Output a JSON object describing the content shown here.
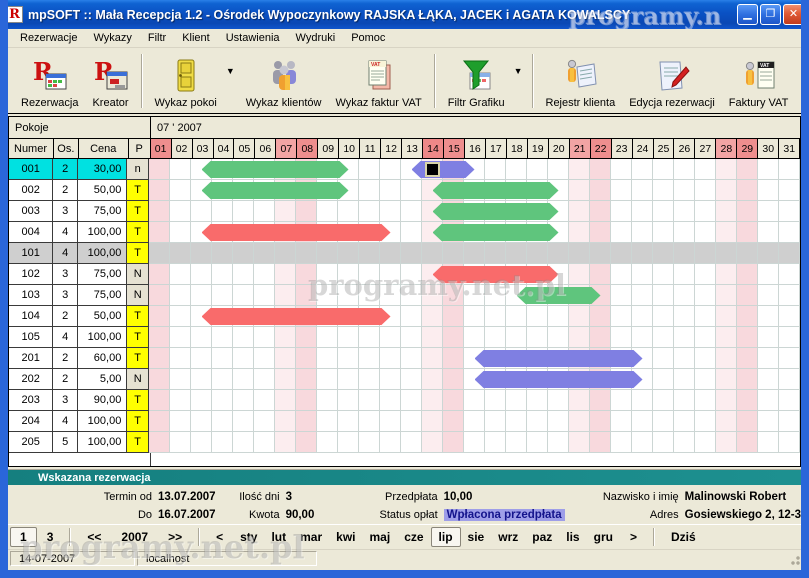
{
  "watermark": {
    "text": "programy.net.pl",
    "text_clipped": "programy.n"
  },
  "window": {
    "title": "mpSOFT :: Mała Recepcja 1.2  -  Ośrodek Wypoczynkowy RAJSKA ŁĄKA, JACEK i AGATA KOWALSCY",
    "icon_letter": "R",
    "buttons": {
      "minimize": "▁",
      "maximize": "❐",
      "close": "✕"
    }
  },
  "menu": {
    "items": [
      "Rezerwacje",
      "Wykazy",
      "Filtr",
      "Klient",
      "Ustawienia",
      "Wydruki",
      "Pomoc"
    ]
  },
  "toolbar": {
    "buttons": [
      {
        "label": "Rezerwacja",
        "icon": "reservation-icon",
        "dropdown": false,
        "group_end": false
      },
      {
        "label": "Kreator",
        "icon": "wizard-icon",
        "dropdown": false,
        "group_end": true
      },
      {
        "label": "Wykaz pokoi",
        "icon": "door-icon",
        "dropdown": true,
        "group_end": false
      },
      {
        "label": "Wykaz klientów",
        "icon": "clients-icon",
        "dropdown": false,
        "group_end": false
      },
      {
        "label": "Wykaz faktur VAT",
        "icon": "vat-list-icon",
        "dropdown": false,
        "group_end": true
      },
      {
        "label": "Filtr Grafiku",
        "icon": "filter-icon",
        "dropdown": true,
        "group_end": true
      },
      {
        "label": "Rejestr klienta",
        "icon": "client-register-icon",
        "dropdown": false,
        "group_end": false
      },
      {
        "label": "Edycja rezerwacji",
        "icon": "edit-reservation-icon",
        "dropdown": false,
        "group_end": false
      },
      {
        "label": "Faktury VAT",
        "icon": "invoice-vat-icon",
        "dropdown": false,
        "group_end": false
      }
    ]
  },
  "grid": {
    "pokoje_label": "Pokoje",
    "month_label": "07 ' 2007",
    "columns": {
      "numer": "Numer",
      "os": "Os.",
      "cena": "Cena",
      "p": "P"
    },
    "day_labels": [
      "01",
      "02",
      "03",
      "04",
      "05",
      "06",
      "07",
      "08",
      "09",
      "10",
      "11",
      "12",
      "13",
      "14",
      "15",
      "16",
      "17",
      "18",
      "19",
      "20",
      "21",
      "22",
      "23",
      "24",
      "25",
      "26",
      "27",
      "28",
      "29",
      "30",
      "31"
    ],
    "saturdays": [
      7,
      14,
      21,
      28
    ],
    "sundays": [
      1,
      8,
      15,
      22,
      29
    ],
    "today": 14,
    "rooms": [
      {
        "number": "001",
        "os": "2",
        "cena": "30,00",
        "p": "n",
        "state": "selected"
      },
      {
        "number": "002",
        "os": "2",
        "cena": "50,00",
        "p": "T",
        "state": ""
      },
      {
        "number": "003",
        "os": "3",
        "cena": "75,00",
        "p": "T",
        "state": ""
      },
      {
        "number": "004",
        "os": "4",
        "cena": "100,00",
        "p": "T",
        "state": ""
      },
      {
        "number": "101",
        "os": "4",
        "cena": "100,00",
        "p": "T",
        "state": "highlighted"
      },
      {
        "number": "102",
        "os": "3",
        "cena": "75,00",
        "p": "N",
        "state": ""
      },
      {
        "number": "103",
        "os": "3",
        "cena": "75,00",
        "p": "N",
        "state": ""
      },
      {
        "number": "104",
        "os": "2",
        "cena": "50,00",
        "p": "T",
        "state": ""
      },
      {
        "number": "105",
        "os": "4",
        "cena": "100,00",
        "p": "T",
        "state": ""
      },
      {
        "number": "201",
        "os": "2",
        "cena": "60,00",
        "p": "T",
        "state": ""
      },
      {
        "number": "202",
        "os": "2",
        "cena": "5,00",
        "p": "N",
        "state": ""
      },
      {
        "number": "203",
        "os": "3",
        "cena": "90,00",
        "p": "T",
        "state": ""
      },
      {
        "number": "204",
        "os": "4",
        "cena": "100,00",
        "p": "T",
        "state": ""
      },
      {
        "number": "205",
        "os": "5",
        "cena": "100,00",
        "p": "T",
        "state": ""
      }
    ],
    "reservations": [
      {
        "room": "001",
        "from_day": 3,
        "to_day": 10,
        "color": "green"
      },
      {
        "room": "001",
        "from_day": 13,
        "to_day": 16,
        "color": "blue",
        "marker_day": 14
      },
      {
        "room": "002",
        "from_day": 3,
        "to_day": 10,
        "color": "green"
      },
      {
        "room": "002",
        "from_day": 14,
        "to_day": 20,
        "color": "green"
      },
      {
        "room": "003",
        "from_day": 14,
        "to_day": 20,
        "color": "green"
      },
      {
        "room": "004",
        "from_day": 3,
        "to_day": 12,
        "color": "red"
      },
      {
        "room": "004",
        "from_day": 14,
        "to_day": 20,
        "color": "green"
      },
      {
        "room": "102",
        "from_day": 14,
        "to_day": 20,
        "color": "red"
      },
      {
        "room": "103",
        "from_day": 18,
        "to_day": 22,
        "color": "green"
      },
      {
        "room": "104",
        "from_day": 3,
        "to_day": 12,
        "color": "red"
      },
      {
        "room": "201",
        "from_day": 16,
        "to_day": 24,
        "color": "blue"
      },
      {
        "room": "202",
        "from_day": 16,
        "to_day": 24,
        "color": "blue"
      }
    ],
    "bar_colors": {
      "green": "#5fc57d",
      "red": "#f96b6b",
      "blue": "#7f7fe2"
    }
  },
  "info_panel": {
    "title": "Wskazana rezerwacja",
    "termin_od_label": "Termin od",
    "termin_od": "13.07.2007",
    "do_label": "Do",
    "do_value": "16.07.2007",
    "ilosc_dni_label": "Ilość dni",
    "ilosc_dni": "3",
    "kwota_label": "Kwota",
    "kwota": "90,00",
    "przedplata_label": "Przedpłata",
    "przedplata": "10,00",
    "status_label": "Status opłat",
    "status": "Wpłacona przedpłata",
    "nazwisko_label": "Nazwisko i imię",
    "nazwisko": "Malinowski Robert",
    "adres_label": "Adres",
    "adres": "Gosiewskiego 2, 12-3"
  },
  "bottom_nav": {
    "page_current": "1",
    "page_count": "3",
    "prev_year": "<<",
    "year": "2007",
    "next_year": ">>",
    "prev_month": "<",
    "next_month": ">",
    "months": [
      "sty",
      "lut",
      "mar",
      "kwi",
      "maj",
      "cze",
      "lip",
      "sie",
      "wrz",
      "paz",
      "lis",
      "gru"
    ],
    "selected_month": "lip",
    "today_label": "Dziś"
  },
  "status_bar": {
    "date": "14-07-2007",
    "host": "localhost"
  },
  "colors": {
    "titlebar_blue": "#0a51c4",
    "frame_blue": "#2a66d9",
    "panel_teal": "#178585",
    "selected_row_cyan": "#00e1e1",
    "highlight_gray": "#cfcfcf",
    "p_yellow": "#ffff00",
    "saturday_header": "#f2a4a4",
    "sunday_header": "#ee8e8e",
    "saturday_cell": "#fcedef",
    "sunday_cell": "#f8d9dd",
    "status_highlight": "#9e9ee8"
  }
}
